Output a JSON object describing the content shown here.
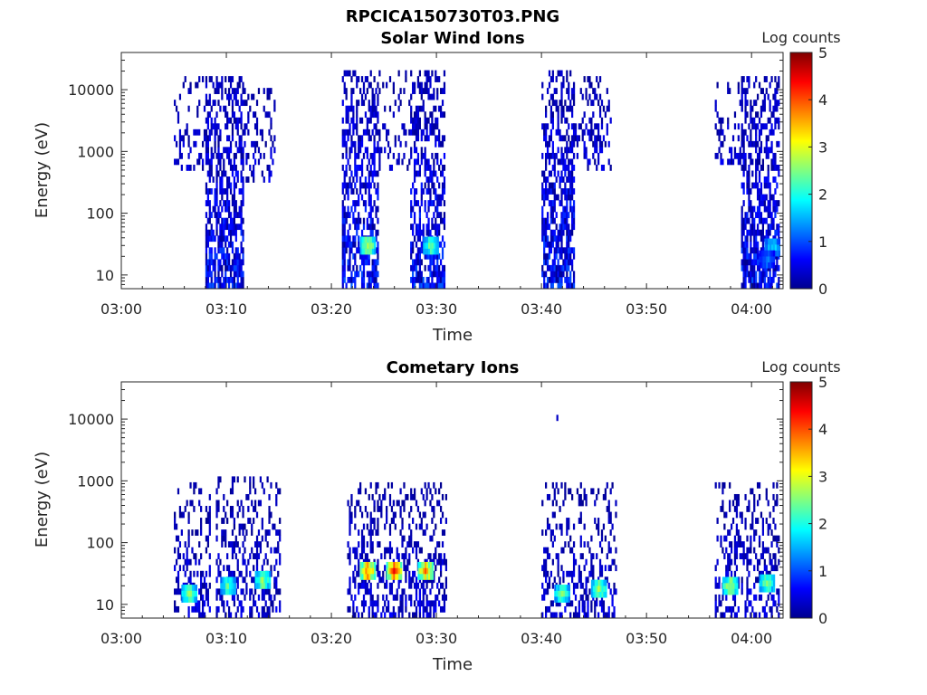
{
  "figure_title": "RPCICA150730T03.PNG",
  "colorbar_colors": [
    "#00008f",
    "#0000ff",
    "#0080ff",
    "#00ffff",
    "#80ff80",
    "#ffff00",
    "#ff8000",
    "#ff0000",
    "#800000"
  ],
  "chart_data": [
    {
      "type": "heatmap",
      "title": "Solar Wind Ions",
      "xlabel": "Time",
      "ylabel": "Energy (eV)",
      "colorbar_label": "Log counts",
      "colorbar_range": [
        0,
        5
      ],
      "colorbar_ticks": [
        "0",
        "1",
        "2",
        "3",
        "4",
        "5"
      ],
      "xlim": [
        "03:00",
        "04:03"
      ],
      "x_ticks": [
        "03:00",
        "03:10",
        "03:20",
        "03:30",
        "03:40",
        "03:50",
        "04:00"
      ],
      "y_scale": "log",
      "ylim": [
        6,
        40000
      ],
      "y_ticks": [
        {
          "value": 10,
          "label": "10"
        },
        {
          "value": 100,
          "label": "100"
        },
        {
          "value": 1000,
          "label": "1000"
        },
        {
          "value": 10000,
          "label": "10000"
        }
      ],
      "grid": false,
      "bursts": [
        {
          "t_start": 5.0,
          "t_end": 8.0,
          "e_min": 500,
          "e_max": 15000,
          "density": 0.3,
          "level_max": 0.6
        },
        {
          "t_start": 8.0,
          "t_end": 11.5,
          "e_min": 6,
          "e_max": 15000,
          "density": 0.65,
          "level_max": 1.0
        },
        {
          "t_start": 11.5,
          "t_end": 14.5,
          "e_min": 300,
          "e_max": 12000,
          "density": 0.3,
          "level_max": 0.6
        },
        {
          "t_start": 21.0,
          "t_end": 24.5,
          "e_min": 6,
          "e_max": 20000,
          "density": 0.6,
          "level_max": 1.0
        },
        {
          "t_start": 24.5,
          "t_end": 27.5,
          "e_min": 500,
          "e_max": 20000,
          "density": 0.2,
          "level_max": 0.5
        },
        {
          "t_start": 27.5,
          "t_end": 30.8,
          "e_min": 6,
          "e_max": 20000,
          "density": 0.6,
          "level_max": 1.0
        },
        {
          "t_start": 40.0,
          "t_end": 43.0,
          "e_min": 6,
          "e_max": 20000,
          "density": 0.65,
          "level_max": 1.0
        },
        {
          "t_start": 43.0,
          "t_end": 46.5,
          "e_min": 500,
          "e_max": 15000,
          "density": 0.3,
          "level_max": 0.6
        },
        {
          "t_start": 56.5,
          "t_end": 59.0,
          "e_min": 600,
          "e_max": 12000,
          "density": 0.3,
          "level_max": 0.6
        },
        {
          "t_start": 59.0,
          "t_end": 62.5,
          "e_min": 6,
          "e_max": 15000,
          "density": 0.65,
          "level_max": 1.0
        }
      ],
      "hotspots": [
        {
          "t": 23.5,
          "e": 30,
          "level": 2.8
        },
        {
          "t": 29.5,
          "e": 30,
          "level": 2.4
        },
        {
          "t": 62.0,
          "e": 28,
          "level": 1.8
        },
        {
          "t": 61.5,
          "e": 18,
          "level": 1.2
        }
      ]
    },
    {
      "type": "heatmap",
      "title": "Cometary Ions",
      "xlabel": "Time",
      "ylabel": "Energy (eV)",
      "colorbar_label": "Log counts",
      "colorbar_range": [
        0,
        5
      ],
      "colorbar_ticks": [
        "0",
        "1",
        "2",
        "3",
        "4",
        "5"
      ],
      "xlim": [
        "03:00",
        "04:03"
      ],
      "x_ticks": [
        "03:00",
        "03:10",
        "03:20",
        "03:30",
        "03:40",
        "03:50",
        "04:00"
      ],
      "y_scale": "log",
      "ylim": [
        6,
        40000
      ],
      "y_ticks": [
        {
          "value": 10,
          "label": "10"
        },
        {
          "value": 100,
          "label": "100"
        },
        {
          "value": 1000,
          "label": "1000"
        },
        {
          "value": 10000,
          "label": "10000"
        }
      ],
      "grid": false,
      "bursts": [
        {
          "t_start": 5.0,
          "t_end": 8.5,
          "e_min": 6,
          "e_max": 900,
          "density": 0.35,
          "level_max": 0.6
        },
        {
          "t_start": 9.0,
          "t_end": 15.0,
          "e_min": 6,
          "e_max": 1200,
          "density": 0.35,
          "level_max": 0.6
        },
        {
          "t_start": 21.5,
          "t_end": 31.0,
          "e_min": 6,
          "e_max": 900,
          "density": 0.4,
          "level_max": 0.6
        },
        {
          "t_start": 40.0,
          "t_end": 47.0,
          "e_min": 6,
          "e_max": 900,
          "density": 0.35,
          "level_max": 0.6
        },
        {
          "t_start": 56.5,
          "t_end": 62.5,
          "e_min": 6,
          "e_max": 1000,
          "density": 0.35,
          "level_max": 0.6
        }
      ],
      "hotspots": [
        {
          "t": 6.5,
          "e": 15,
          "level": 2.5
        },
        {
          "t": 10.2,
          "e": 20,
          "level": 2.3
        },
        {
          "t": 13.5,
          "e": 25,
          "level": 2.6
        },
        {
          "t": 23.5,
          "e": 35,
          "level": 3.8
        },
        {
          "t": 26.0,
          "e": 35,
          "level": 4.0
        },
        {
          "t": 29.0,
          "e": 35,
          "level": 3.6
        },
        {
          "t": 42.0,
          "e": 15,
          "level": 2.4
        },
        {
          "t": 45.5,
          "e": 18,
          "level": 2.6
        },
        {
          "t": 58.0,
          "e": 20,
          "level": 2.8
        },
        {
          "t": 61.5,
          "e": 22,
          "level": 2.5
        }
      ],
      "isolated_points": [
        {
          "t": 41.5,
          "e": 10500,
          "level": 0.3
        }
      ]
    }
  ]
}
